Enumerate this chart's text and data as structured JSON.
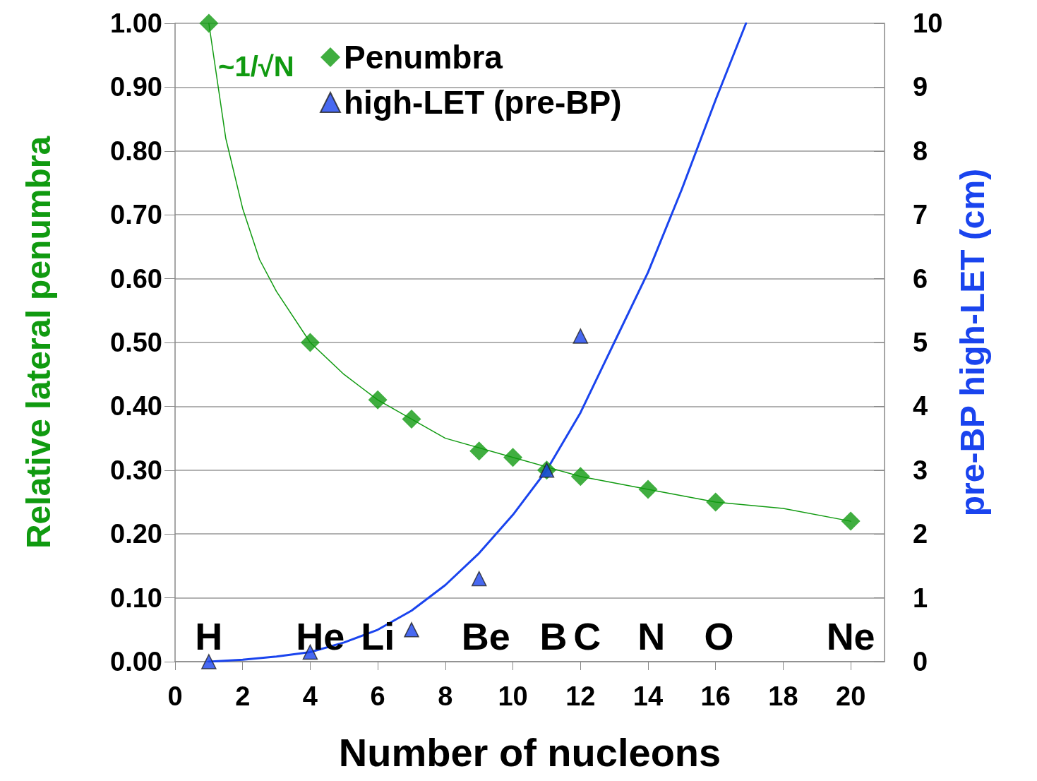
{
  "chart_data": {
    "type": "scatter",
    "xlabel": "Number of nucleons",
    "ylabel": "Relative lateral penumbra",
    "y2label": "pre-BP high-LET (cm)",
    "xlim": [
      0,
      21
    ],
    "xticks": [
      0,
      2,
      4,
      6,
      8,
      10,
      12,
      14,
      16,
      18,
      20
    ],
    "ylim": [
      0,
      1
    ],
    "yticks": [
      {
        "value": 0,
        "label": "0.00"
      },
      {
        "value": 0.1,
        "label": "0.10"
      },
      {
        "value": 0.2,
        "label": "0.20"
      },
      {
        "value": 0.3,
        "label": "0.30"
      },
      {
        "value": 0.4,
        "label": "0.40"
      },
      {
        "value": 0.5,
        "label": "0.50"
      },
      {
        "value": 0.6,
        "label": "0.60"
      },
      {
        "value": 0.7,
        "label": "0.70"
      },
      {
        "value": 0.8,
        "label": "0.80"
      },
      {
        "value": 0.9,
        "label": "0.90"
      },
      {
        "value": 1,
        "label": "1.00"
      }
    ],
    "y2lim": [
      0,
      10
    ],
    "y2ticks": [
      0,
      1,
      2,
      3,
      4,
      5,
      6,
      7,
      8,
      9,
      10
    ],
    "grid": "y",
    "legend": "top",
    "series": [
      {
        "name": "Penumbra",
        "marker": "diamond",
        "color": "#109a10",
        "x": [
          1,
          4,
          6,
          7,
          9,
          10,
          11,
          12,
          14,
          16,
          20
        ],
        "values": [
          1.0,
          0.5,
          0.41,
          0.38,
          0.33,
          0.32,
          0.3,
          0.29,
          0.27,
          0.25,
          0.22
        ]
      },
      {
        "name": "high-LET (pre-BP)",
        "marker": "triangle",
        "axis": "y2",
        "color": "#1a44ee",
        "x": [
          1,
          4,
          7,
          9,
          11,
          12
        ],
        "values": [
          0,
          0.15,
          0.5,
          1.3,
          3.0,
          5.1
        ]
      },
      {
        "type": "line",
        "marker": "none",
        "color": "#109a10",
        "x": [
          1,
          1.5,
          2,
          2.5,
          3,
          4,
          5,
          6,
          8,
          10,
          12,
          14,
          16,
          18,
          20
        ],
        "values": [
          1.0,
          0.82,
          0.71,
          0.63,
          0.58,
          0.5,
          0.45,
          0.41,
          0.35,
          0.32,
          0.29,
          0.27,
          0.25,
          0.24,
          0.22
        ]
      },
      {
        "type": "line",
        "marker": "none",
        "axis": "y2",
        "color": "#1a44ee",
        "x": [
          1,
          2,
          3,
          4,
          5,
          6,
          7,
          8,
          9,
          10,
          11,
          12,
          13,
          14,
          15,
          16,
          16.9
        ],
        "values": [
          0,
          0.03,
          0.08,
          0.15,
          0.3,
          0.5,
          0.8,
          1.2,
          1.7,
          2.3,
          3.0,
          3.9,
          5.0,
          6.1,
          7.4,
          8.8,
          10
        ]
      }
    ],
    "annotations": [
      "~1/√N",
      "H",
      "He",
      "Li",
      "Be",
      "B",
      "C",
      "N",
      "O",
      "Ne"
    ]
  }
}
